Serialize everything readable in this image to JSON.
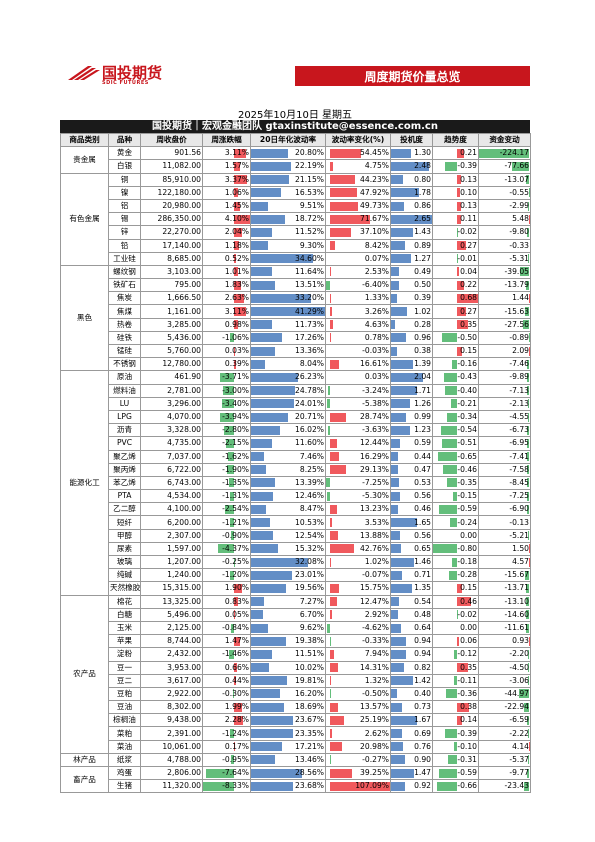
{
  "header": {
    "logo_name": "国投期货",
    "logo_sub": "SDIC FUTURES",
    "banner": "周度期货价量总览"
  },
  "report": {
    "date": "2025年10月10日 星期五",
    "team": "国投期货｜宏观金融团队 gtaxinstitute@essence.com.cn"
  },
  "table": {
    "columns": [
      "商品类别",
      "品种",
      "周收盘价",
      "周涨跌幅",
      "20日年化波动率",
      "波动率变化(%)",
      "投机度",
      "趋势度",
      "资金变动"
    ],
    "groups": [
      {
        "name": "贵金属",
        "rows": [
          [
            "黄金",
            "901.56",
            "3.11%",
            "20.80%",
            "54.45%",
            "1.30",
            "0.21",
            "-224.17"
          ],
          [
            "白银",
            "11,082.00",
            "1.57%",
            "22.19%",
            "4.75%",
            "2.48",
            "-0.39",
            "-77.66"
          ]
        ]
      },
      {
        "name": "有色金属",
        "rows": [
          [
            "铜",
            "85,910.00",
            "3.37%",
            "21.15%",
            "44.23%",
            "0.80",
            "0.13",
            "-13.07"
          ],
          [
            "镍",
            "122,180.00",
            "1.06%",
            "16.53%",
            "47.92%",
            "1.78",
            "0.10",
            "-0.55"
          ],
          [
            "铝",
            "20,980.00",
            "1.45%",
            "9.51%",
            "49.73%",
            "0.86",
            "0.13",
            "-2.99"
          ],
          [
            "锡",
            "286,350.00",
            "4.10%",
            "18.72%",
            "71.67%",
            "2.65",
            "0.11",
            "5.48"
          ],
          [
            "锌",
            "22,270.00",
            "2.04%",
            "11.52%",
            "37.10%",
            "1.43",
            "-0.02",
            "-9.80"
          ],
          [
            "铅",
            "17,140.00",
            "1.18%",
            "9.30%",
            "8.42%",
            "0.89",
            "0.27",
            "-0.33"
          ],
          [
            "工业硅",
            "8,685.00",
            "0.52%",
            "34.60%",
            "0.07%",
            "1.27",
            "-0.01",
            "-5.31"
          ]
        ]
      },
      {
        "name": "黑色",
        "rows": [
          [
            "螺纹钢",
            "3,103.00",
            "1.01%",
            "11.64%",
            "2.53%",
            "0.49",
            "0.04",
            "-39.05"
          ],
          [
            "铁矿石",
            "795.00",
            "1.83%",
            "13.51%",
            "-6.40%",
            "0.50",
            "0.22",
            "-13.79"
          ],
          [
            "焦炭",
            "1,666.50",
            "2.63%",
            "33.20%",
            "1.33%",
            "0.39",
            "0.68",
            "1.44"
          ],
          [
            "焦煤",
            "1,161.00",
            "3.11%",
            "41.29%",
            "3.26%",
            "1.02",
            "0.27",
            "-15.63"
          ],
          [
            "热卷",
            "3,285.00",
            "0.98%",
            "11.73%",
            "4.63%",
            "0.28",
            "0.35",
            "-27.56"
          ],
          [
            "硅铁",
            "5,436.00",
            "-1.06%",
            "17.26%",
            "0.78%",
            "0.96",
            "-0.50",
            "-0.89"
          ],
          [
            "锰硅",
            "5,760.00",
            "0.03%",
            "13.36%",
            "-0.03%",
            "0.38",
            "0.15",
            "2.09"
          ],
          [
            "不锈钢",
            "12,780.00",
            "0.39%",
            "8.04%",
            "16.61%",
            "1.39",
            "-0.16",
            "-7.46"
          ]
        ]
      },
      {
        "name": "能源化工",
        "rows": [
          [
            "原油",
            "461.90",
            "-3.71%",
            "26.23%",
            "0.03%",
            "2.04",
            "-0.43",
            "-9.89"
          ],
          [
            "燃料油",
            "2,781.00",
            "-3.00%",
            "24.78%",
            "-3.24%",
            "1.71",
            "-0.40",
            "-7.13"
          ],
          [
            "LU",
            "3,296.00",
            "-3.40%",
            "24.01%",
            "-5.38%",
            "1.26",
            "-0.21",
            "-2.13"
          ],
          [
            "LPG",
            "4,070.00",
            "-3.94%",
            "20.71%",
            "28.74%",
            "0.99",
            "-0.34",
            "-4.55"
          ],
          [
            "沥青",
            "3,328.00",
            "-2.80%",
            "16.02%",
            "-3.63%",
            "1.23",
            "-0.54",
            "-6.73"
          ],
          [
            "PVC",
            "4,735.00",
            "-2.15%",
            "11.60%",
            "12.44%",
            "0.59",
            "-0.51",
            "-6.95"
          ],
          [
            "聚乙烯",
            "7,037.00",
            "-1.62%",
            "7.46%",
            "16.29%",
            "0.44",
            "-0.65",
            "-7.41"
          ],
          [
            "聚丙烯",
            "6,722.00",
            "-1.90%",
            "8.25%",
            "29.13%",
            "0.47",
            "-0.46",
            "-7.58"
          ],
          [
            "苯乙烯",
            "6,743.00",
            "-1.35%",
            "13.39%",
            "-7.25%",
            "0.53",
            "-0.35",
            "-8.45"
          ],
          [
            "PTA",
            "4,534.00",
            "-1.31%",
            "12.46%",
            "-5.30%",
            "0.56",
            "-0.15",
            "-7.25"
          ],
          [
            "乙二醇",
            "4,100.00",
            "-2.54%",
            "8.47%",
            "13.23%",
            "0.46",
            "-0.59",
            "-6.90"
          ],
          [
            "短纤",
            "6,200.00",
            "-1.21%",
            "10.53%",
            "3.53%",
            "1.65",
            "-0.24",
            "-0.13"
          ],
          [
            "甲醇",
            "2,307.00",
            "-0.90%",
            "12.54%",
            "13.88%",
            "0.56",
            "0.00",
            "-5.21"
          ],
          [
            "尿素",
            "1,597.00",
            "-4.37%",
            "15.32%",
            "42.76%",
            "0.65",
            "-0.80",
            "1.50"
          ],
          [
            "玻璃",
            "1,207.00",
            "-0.25%",
            "32.08%",
            "1.02%",
            "1.46",
            "-0.18",
            "4.57"
          ],
          [
            "纯碱",
            "1,240.00",
            "-1.20%",
            "23.01%",
            "-0.07%",
            "0.71",
            "-0.28",
            "-15.67"
          ],
          [
            "天然橡胶",
            "15,315.00",
            "1.90%",
            "19.56%",
            "15.75%",
            "1.35",
            "0.15",
            "-13.71"
          ]
        ]
      },
      {
        "name": "农产品",
        "rows": [
          [
            "棉花",
            "13,325.00",
            "0.83%",
            "7.27%",
            "12.47%",
            "0.54",
            "0.46",
            "-13.10"
          ],
          [
            "白糖",
            "5,496.00",
            "0.05%",
            "6.70%",
            "2.92%",
            "0.48",
            "-0.02",
            "-14.60"
          ],
          [
            "玉米",
            "2,125.00",
            "-0.84%",
            "9.62%",
            "-4.62%",
            "0.64",
            "0.00",
            "-11.61"
          ],
          [
            "苹果",
            "8,744.00",
            "1.47%",
            "19.38%",
            "-0.33%",
            "0.94",
            "0.06",
            "0.93"
          ],
          [
            "淀粉",
            "2,432.00",
            "-1.46%",
            "11.51%",
            "7.94%",
            "0.94",
            "-0.12",
            "-2.20"
          ],
          [
            "豆一",
            "3,953.00",
            "0.66%",
            "10.02%",
            "14.31%",
            "0.82",
            "0.35",
            "-4.50"
          ],
          [
            "豆二",
            "3,617.00",
            "0.44%",
            "19.81%",
            "1.32%",
            "1.42",
            "-0.11",
            "-3.06"
          ],
          [
            "豆粕",
            "2,922.00",
            "-0.30%",
            "16.20%",
            "-0.50%",
            "0.40",
            "-0.36",
            "-44.97"
          ],
          [
            "豆油",
            "8,302.00",
            "1.99%",
            "18.69%",
            "13.57%",
            "0.73",
            "0.38",
            "-22.94"
          ],
          [
            "棕榈油",
            "9,438.00",
            "2.28%",
            "23.67%",
            "25.19%",
            "1.67",
            "0.14",
            "-6.59"
          ],
          [
            "菜粕",
            "2,391.00",
            "-1.24%",
            "23.35%",
            "2.62%",
            "0.69",
            "-0.39",
            "-2.22"
          ],
          [
            "菜油",
            "10,061.00",
            "0.17%",
            "17.21%",
            "20.98%",
            "0.76",
            "-0.10",
            "4.14"
          ]
        ]
      },
      {
        "name": "林产品",
        "rows": [
          [
            "纸浆",
            "4,788.00",
            "-0.95%",
            "13.46%",
            "-0.27%",
            "0.90",
            "-0.31",
            "-5.37"
          ]
        ]
      },
      {
        "name": "畜产品",
        "rows": [
          [
            "鸡蛋",
            "2,806.00",
            "-7.64%",
            "28.56%",
            "39.25%",
            "1.47",
            "-0.59",
            "-9.77"
          ],
          [
            "生猪",
            "11,320.00",
            "-8.33%",
            "23.68%",
            "107.09%",
            "0.92",
            "-0.66",
            "-23.43"
          ]
        ]
      }
    ]
  }
}
